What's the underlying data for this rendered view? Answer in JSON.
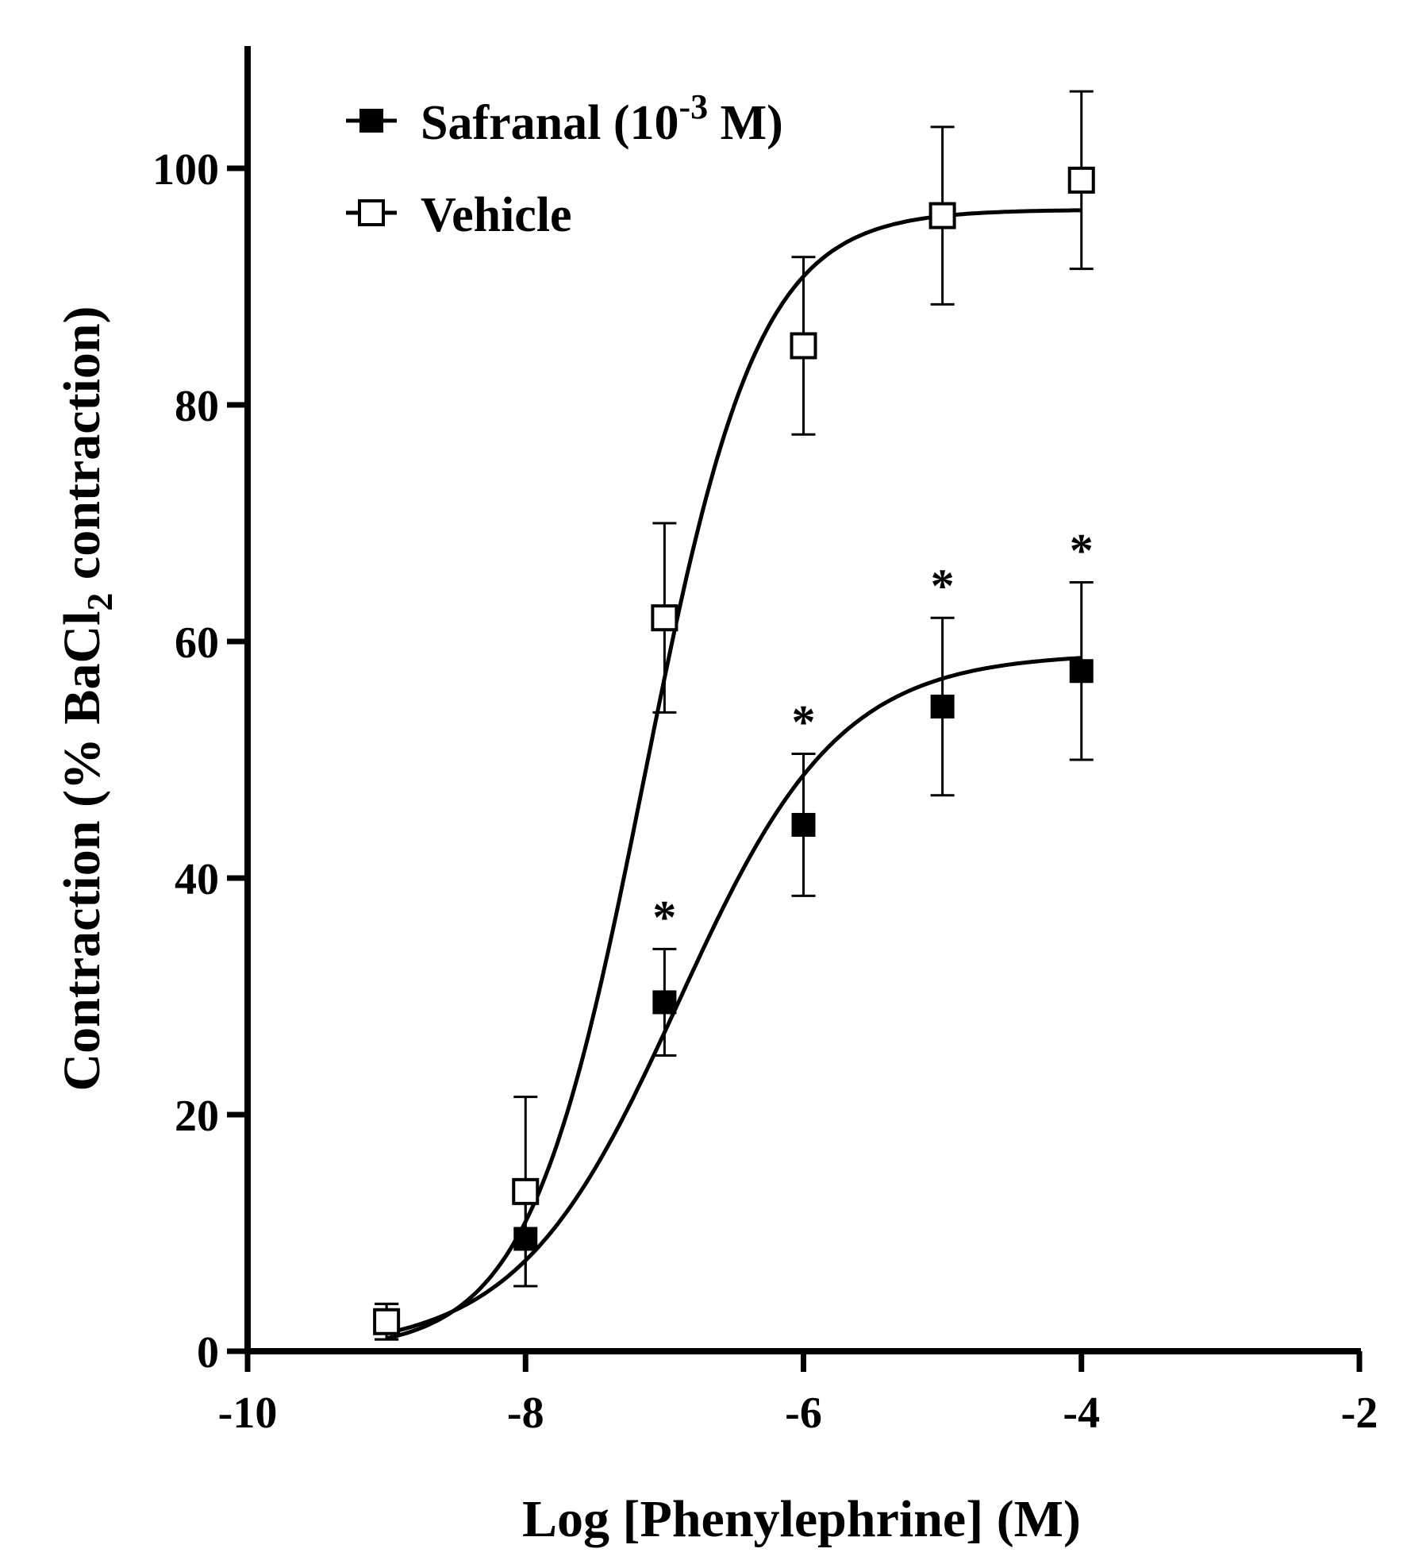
{
  "chart_data": {
    "type": "line",
    "title": "",
    "xlabel": "Log [Phenylephrine] (M)",
    "ylabel_parts": [
      "Contraction (% BaCl",
      "2",
      " contraction)"
    ],
    "xlim": [
      -10,
      -2
    ],
    "ylim": [
      0,
      110
    ],
    "xticks": [
      -10,
      -8,
      -6,
      -4,
      -2
    ],
    "yticks": [
      0,
      20,
      40,
      60,
      80,
      100
    ],
    "grid": false,
    "legend_position": "top-left",
    "series": [
      {
        "name": "Safranal (10-3 M)",
        "legend_parts": [
          "Safranal (10",
          "-3",
          " M)"
        ],
        "marker": "filled-square",
        "x": [
          -9,
          -8,
          -7,
          -6,
          -5,
          -4
        ],
        "y": [
          2.5,
          9.5,
          29.5,
          44.5,
          54.5,
          57.5
        ],
        "err": [
          1.5,
          4,
          4.5,
          6,
          7.5,
          7.5
        ],
        "significant": [
          false,
          false,
          true,
          true,
          true,
          true
        ],
        "fit": {
          "bottom": 0,
          "top": 59,
          "logEC50": -6.9,
          "hill": 0.75
        }
      },
      {
        "name": "Vehicle",
        "legend_parts": [
          "Vehicle",
          "",
          ""
        ],
        "marker": "open-square",
        "x": [
          -9,
          -8,
          -7,
          -6,
          -5,
          -4
        ],
        "y": [
          2.5,
          13.5,
          62,
          85,
          96,
          99
        ],
        "err": [
          1.5,
          8,
          8,
          7.5,
          7.5,
          7.5
        ],
        "significant": [
          false,
          false,
          false,
          false,
          false,
          false
        ],
        "fit": {
          "bottom": 0,
          "top": 96.5,
          "logEC50": -7.15,
          "hill": 1.05
        }
      }
    ],
    "annotation_symbol": "*"
  }
}
